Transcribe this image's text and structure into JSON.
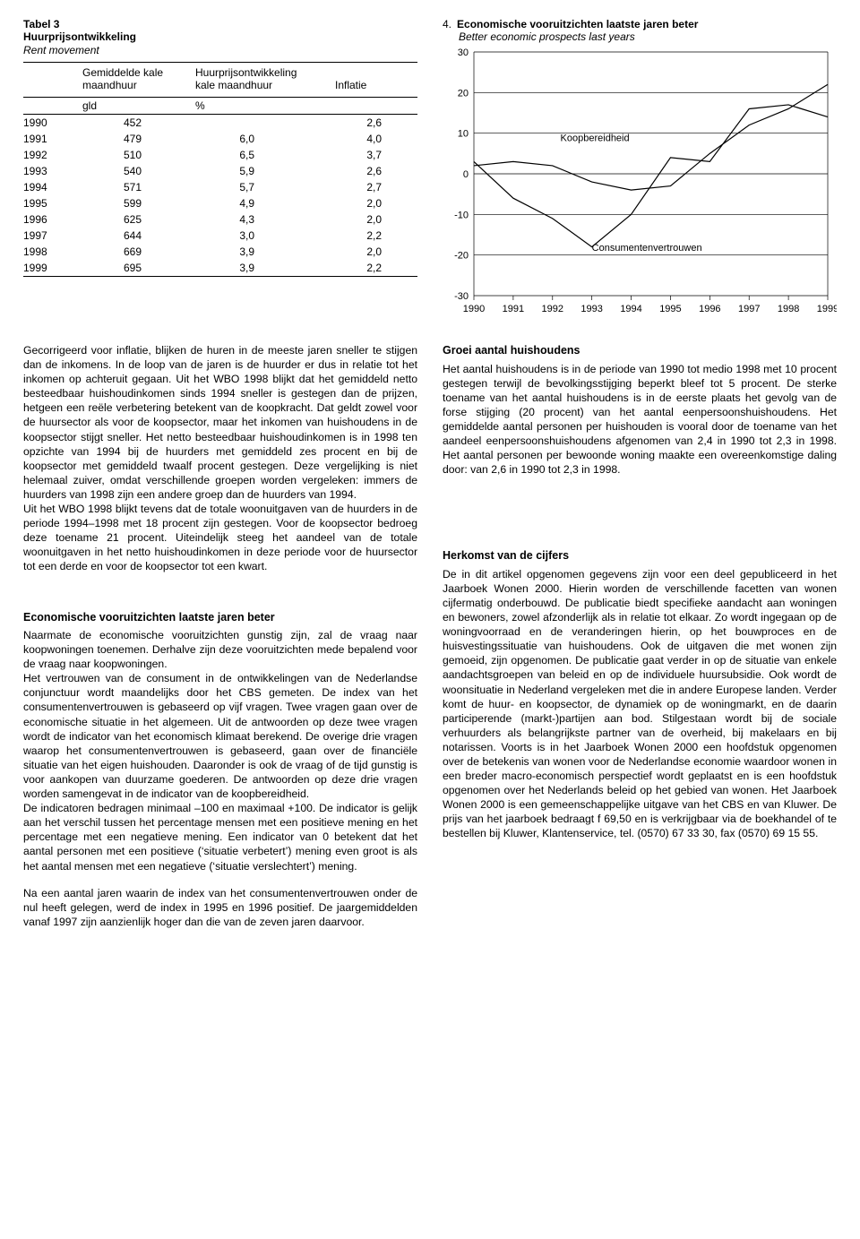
{
  "table": {
    "label": "Tabel 3",
    "title": "Huurprijsontwikkeling",
    "subtitle_en": "Rent movement",
    "columns": {
      "c1a": "Gemiddelde kale",
      "c1b": "maandhuur",
      "c2a": "Huurprijsontwikkeling",
      "c2b": "kale maandhuur",
      "c3": "Inflatie"
    },
    "units": {
      "c1": "gld",
      "c2": "%"
    },
    "rows": [
      {
        "year": "1990",
        "rent": "452",
        "dev": "",
        "infl": "2,6"
      },
      {
        "year": "1991",
        "rent": "479",
        "dev": "6,0",
        "infl": "4,0"
      },
      {
        "year": "1992",
        "rent": "510",
        "dev": "6,5",
        "infl": "3,7"
      },
      {
        "year": "1993",
        "rent": "540",
        "dev": "5,9",
        "infl": "2,6"
      },
      {
        "year": "1994",
        "rent": "571",
        "dev": "5,7",
        "infl": "2,7"
      },
      {
        "year": "1995",
        "rent": "599",
        "dev": "4,9",
        "infl": "2,0"
      },
      {
        "year": "1996",
        "rent": "625",
        "dev": "4,3",
        "infl": "2,0"
      },
      {
        "year": "1997",
        "rent": "644",
        "dev": "3,0",
        "infl": "2,2"
      },
      {
        "year": "1998",
        "rent": "669",
        "dev": "3,9",
        "infl": "2,0"
      },
      {
        "year": "1999",
        "rent": "695",
        "dev": "3,9",
        "infl": "2,2"
      }
    ],
    "group_break_after_index": 4
  },
  "chart": {
    "type": "line",
    "index": "4.",
    "title": "Economische vooruitzichten laatste jaren beter",
    "subtitle": "Better economic prospects last years",
    "x_labels": [
      "1990",
      "1991",
      "1992",
      "1993",
      "1994",
      "1995",
      "1996",
      "1997",
      "1998",
      "1999"
    ],
    "y_ticks": [
      30,
      20,
      10,
      0,
      -10,
      -20,
      -30
    ],
    "ylim": [
      -30,
      30
    ],
    "series": {
      "koopbereidheid": {
        "label": "Koopbereidheid",
        "label_pos": {
          "x_index": 2.2,
          "y": 8
        },
        "color": "#000000",
        "width": 1.2,
        "values": [
          2,
          3,
          2,
          -2,
          -4,
          -3,
          5,
          12,
          16,
          22
        ]
      },
      "consumentenvertrouwen": {
        "label": "Consumentenvertrouwen",
        "label_pos": {
          "x_index": 3.0,
          "y": -19
        },
        "color": "#000000",
        "width": 1.2,
        "values": [
          3,
          -6,
          -11,
          -18,
          -10,
          4,
          3,
          16,
          17,
          14
        ]
      }
    },
    "grid_color": "#000000",
    "background_color": "#ffffff",
    "tick_fontsize": 11,
    "label_fontsize": 11
  },
  "body": {
    "left": {
      "p1": "Gecorrigeerd voor inflatie, blijken de huren in de meeste jaren sneller te stijgen dan de inkomens. In de loop van de jaren is de huurder er dus in relatie tot het inkomen op achteruit gegaan. Uit het WBO 1998 blijkt dat het gemiddeld netto besteedbaar huishoudinkomen sinds 1994 sneller is gestegen dan de prijzen, hetgeen een reële verbetering betekent van de koopkracht. Dat geldt zowel voor de huursector als voor de koopsector, maar het inkomen van huishoudens in de koopsector stijgt sneller. Het netto besteedbaar huishoudinkomen is in 1998 ten opzichte van 1994 bij de huurders met gemiddeld zes procent en bij de koopsector met gemiddeld twaalf procent gestegen. Deze vergelijking is niet helemaal zuiver, omdat verschillende groepen worden vergeleken: immers de huurders van 1998 zijn een andere groep dan de huurders van 1994.",
      "p2": "Uit het WBO 1998 blijkt tevens dat de totale woonuitgaven van de huurders in de periode 1994–1998 met 18 procent zijn gestegen. Voor de koopsector bedroeg deze toename 21 procent. Uiteindelijk steeg het aandeel van de totale woonuitgaven in het netto huishoudinkomen in deze periode voor de huursector tot een derde en voor de koopsector tot een kwart.",
      "h2": "Economische vooruitzichten laatste jaren beter",
      "p3": "Naarmate de economische vooruitzichten gunstig zijn, zal de vraag naar koopwoningen toenemen. Derhalve zijn deze vooruitzichten mede bepalend voor de vraag naar koopwoningen.",
      "p4": "Het vertrouwen van de consument in de ontwikkelingen van de Nederlandse conjunctuur wordt maandelijks door het CBS gemeten. De index van het consumentenvertrouwen is gebaseerd op vijf vragen. Twee vragen gaan over de economische situatie in het algemeen. Uit de antwoorden op deze twee vragen wordt de indicator van het economisch klimaat berekend. De overige drie vragen waarop het consumentenvertrouwen is gebaseerd, gaan over de financiële situatie van het eigen huishouden. Daaronder is ook de vraag of de tijd gunstig is voor aankopen van duurzame goederen. De antwoorden op deze drie vragen worden samengevat in de indicator van de koopbereidheid.",
      "p5": "De indicatoren bedragen minimaal –100 en maximaal +100. De indicator is gelijk aan het verschil tussen het percentage mensen met een positieve mening en het percentage met een negatieve mening. Een indicator van 0 betekent dat het aantal personen met een positieve (‘situatie verbetert’) mening even groot is als het aantal mensen met een negatieve (‘situatie verslechtert’) mening.",
      "p6": "Na een aantal jaren waarin de index van het consumentenvertrouwen onder de nul heeft gelegen, werd de index in 1995 en 1996 positief. De jaargemiddelden vanaf 1997 zijn aanzienlijk hoger dan die van de zeven jaren daarvoor."
    },
    "right": {
      "h1": "Groei aantal huishoudens",
      "p1": "Het aantal huishoudens is in de periode van 1990 tot medio 1998 met 10 procent gestegen terwijl de bevolkingsstijging beperkt bleef tot 5 procent. De sterke toename van het aantal huishoudens is in de eerste plaats het gevolg van de forse stijging (20 procent) van het aantal eenpersoonshuishoudens. Het gemiddelde aantal personen per huishouden is vooral door de toename van het aandeel eenpersoonshuishoudens afgenomen van 2,4 in 1990 tot 2,3 in 1998. Het aantal personen per bewoonde woning maakte een overeenkomstige daling door: van 2,6 in 1990 tot 2,3 in 1998.",
      "h2": "Herkomst van de cijfers",
      "p2": "De in dit artikel opgenomen gegevens zijn voor een deel gepubliceerd in het Jaarboek Wonen 2000. Hierin worden de verschillende facetten van wonen cijfermatig onderbouwd. De publicatie biedt specifieke aandacht aan woningen en bewoners, zowel afzonderlijk als in relatie tot elkaar. Zo wordt ingegaan op de woningvoorraad en de veranderingen hierin, op het bouwproces en de huisvestingssituatie van huishoudens. Ook de uitgaven die met wonen zijn gemoeid, zijn opgenomen. De publicatie gaat verder in op de situatie van enkele aandachtsgroepen van beleid en op de individuele huursubsidie. Ook wordt de woonsituatie in Nederland vergeleken met die in andere Europese landen. Verder komt de huur- en koopsector, de dynamiek op de woningmarkt, en de daarin participerende (markt-)partijen aan bod. Stilgestaan wordt bij de sociale verhuurders als belangrijkste partner van de overheid, bij makelaars en bij notarissen. Voorts is in het Jaarboek Wonen 2000 een hoofdstuk opgenomen over de betekenis van wonen voor de Nederlandse economie waardoor wonen in een breder macro-economisch perspectief wordt geplaatst en is een hoofdstuk opgenomen over het Nederlands beleid op het gebied van wonen. Het Jaarboek Wonen 2000 is een gemeenschappelijke uitgave van het CBS en van Kluwer. De prijs van het jaarboek bedraagt f 69,50 en is verkrijgbaar via de boekhandel of te bestellen bij Kluwer, Klantenservice, tel. (0570) 67 33 30, fax (0570) 69 15 55."
    }
  }
}
